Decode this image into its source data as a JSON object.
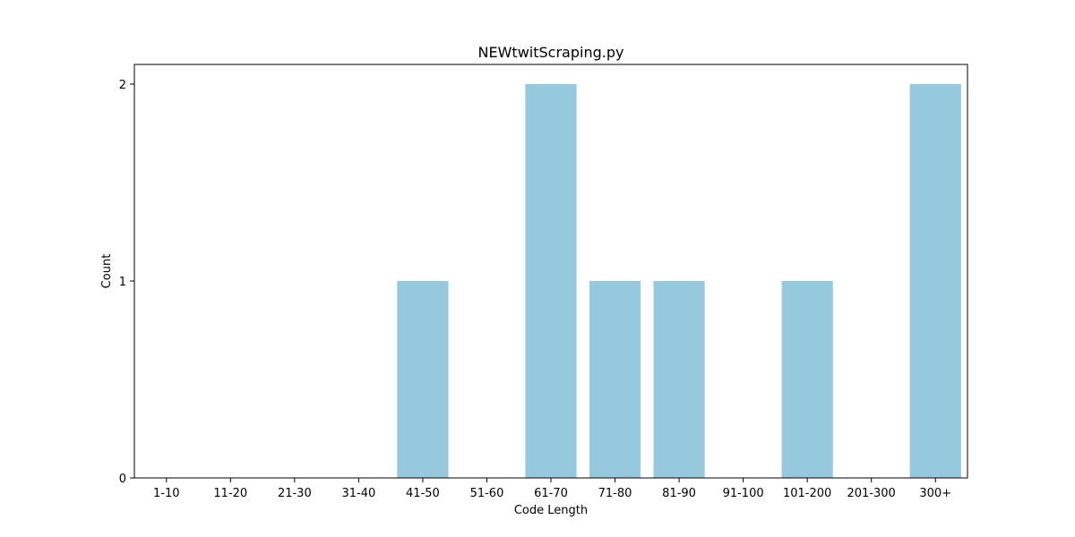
{
  "chart_data": {
    "type": "bar",
    "title": "NEWtwitScraping.py",
    "xlabel": "Code Length",
    "ylabel": "Count",
    "categories": [
      "1-10",
      "11-20",
      "21-30",
      "31-40",
      "41-50",
      "51-60",
      "61-70",
      "71-80",
      "81-90",
      "91-100",
      "101-200",
      "201-300",
      "300+"
    ],
    "values": [
      0,
      0,
      0,
      0,
      1,
      0,
      2,
      1,
      1,
      0,
      1,
      0,
      2
    ],
    "ylim": [
      0,
      2.1
    ],
    "yticks": [
      0,
      1,
      2
    ],
    "grid": false,
    "bar_color": "#96c9de"
  }
}
